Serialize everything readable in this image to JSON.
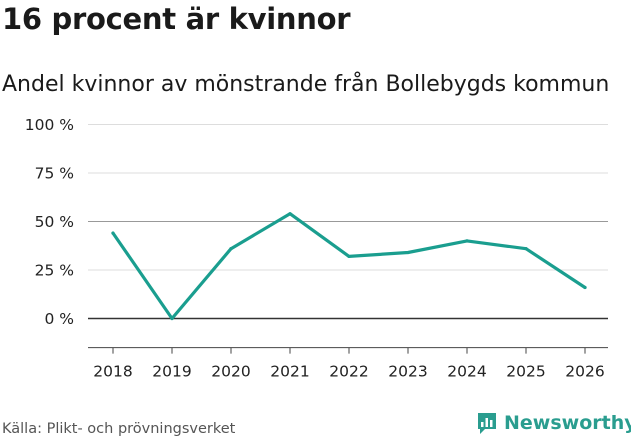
{
  "title": "16 procent är kvinnor",
  "subtitle": "Andel kvinnor av mönstrande från Bollebygds kommun",
  "source": "Källa: Plikt- och prövningsverket",
  "brand": {
    "name": "Newsworthy",
    "logo_icon": "newsworthy-logo-icon"
  },
  "colors": {
    "line": "#1a9e8f",
    "zero_line": "#333333",
    "grid": "#dddddd",
    "brand": "#2a9d8f"
  },
  "chart_data": {
    "type": "line",
    "title": "16 procent är kvinnor",
    "subtitle": "Andel kvinnor av mönstrande från Bollebygds kommun",
    "xlabel": "",
    "ylabel": "",
    "categories": [
      "2018",
      "2019",
      "2020",
      "2021",
      "2022",
      "2023",
      "2024",
      "2025",
      "2026"
    ],
    "series": [
      {
        "values": [
          44,
          0,
          36,
          54,
          32,
          34,
          40,
          36,
          16
        ]
      }
    ],
    "ylim": [
      -15,
      100
    ],
    "yticks": [
      0,
      25,
      50,
      75,
      100
    ],
    "ytick_labels": [
      "0 %",
      "25 %",
      "50 %",
      "75 %",
      "100 %"
    ],
    "grid": true
  }
}
